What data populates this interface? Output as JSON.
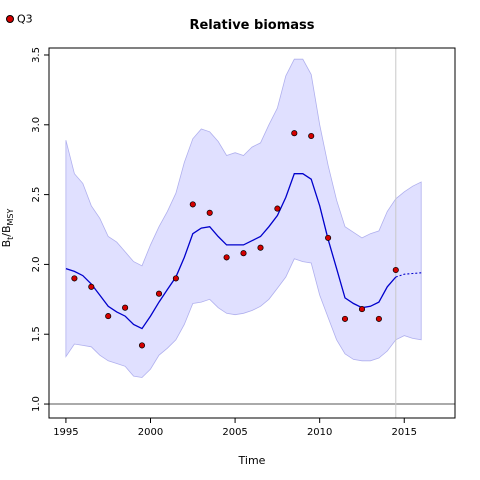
{
  "chart_data": {
    "type": "line",
    "title": "Relative biomass",
    "xlabel": "Time",
    "ylabel": "B",
    "ylabel_sub1": "t",
    "ylabel_sep": "/B",
    "ylabel_sub2": "MSY",
    "xlim": [
      1994,
      2018
    ],
    "ylim": [
      0.9,
      3.55
    ],
    "xticks": [
      1995,
      2000,
      2005,
      2010,
      2015
    ],
    "yticks": [
      1.0,
      1.5,
      2.0,
      2.5,
      3.0,
      3.5
    ],
    "ytick_labels": [
      "1.0",
      "1.5",
      "2.0",
      "2.5",
      "3.0",
      "3.5"
    ],
    "reference_line_y": 1.0,
    "vertical_line_x": 2014.5,
    "colors": {
      "line": "#0000cc",
      "band": "#e0e0ff",
      "band_edge": "#b0b0ee",
      "points": "#d40000",
      "vline": "#c8c8c8"
    },
    "series": [
      {
        "name": "Q3",
        "type": "points",
        "x": [
          1995.5,
          1996.5,
          1997.5,
          1998.5,
          1999.5,
          2000.5,
          2001.5,
          2002.5,
          2003.5,
          2004.5,
          2005.5,
          2006.5,
          2007.5,
          2008.5,
          2009.5,
          2010.5,
          2011.5,
          2012.5,
          2013.5,
          2014.5
        ],
        "values": [
          1.9,
          1.84,
          1.63,
          1.69,
          1.42,
          1.79,
          1.9,
          2.43,
          2.37,
          2.05,
          2.08,
          2.12,
          2.4,
          2.94,
          2.92,
          2.19,
          1.61,
          1.68,
          1.61,
          1.96
        ]
      },
      {
        "type": "line",
        "x": [
          1995.0,
          1995.5,
          1996.0,
          1996.5,
          1997.0,
          1997.5,
          1998.0,
          1998.5,
          1999.0,
          1999.5,
          2000.0,
          2000.5,
          2001.0,
          2001.5,
          2002.0,
          2002.5,
          2003.0,
          2003.5,
          2004.0,
          2004.5,
          2005.0,
          2005.5,
          2006.0,
          2006.5,
          2007.0,
          2007.5,
          2008.0,
          2008.5,
          2009.0,
          2009.5,
          2010.0,
          2010.5,
          2011.0,
          2011.5,
          2012.0,
          2012.5,
          2013.0,
          2013.5,
          2014.0,
          2014.5
        ],
        "values": [
          1.97,
          1.95,
          1.92,
          1.86,
          1.78,
          1.7,
          1.66,
          1.63,
          1.57,
          1.54,
          1.63,
          1.73,
          1.82,
          1.91,
          2.05,
          2.22,
          2.26,
          2.27,
          2.2,
          2.14,
          2.14,
          2.14,
          2.17,
          2.2,
          2.27,
          2.35,
          2.48,
          2.65,
          2.65,
          2.61,
          2.42,
          2.18,
          1.97,
          1.76,
          1.72,
          1.69,
          1.7,
          1.73,
          1.84,
          1.91
        ]
      },
      {
        "type": "projection",
        "x": [
          2014.5,
          2015.0,
          2015.5,
          2016.0
        ],
        "values": [
          1.91,
          1.93,
          1.935,
          1.94
        ]
      },
      {
        "type": "band",
        "x": [
          1995.0,
          1995.5,
          1996.0,
          1996.5,
          1997.0,
          1997.5,
          1998.0,
          1998.5,
          1999.0,
          1999.5,
          2000.0,
          2000.5,
          2001.0,
          2001.5,
          2002.0,
          2002.5,
          2003.0,
          2003.5,
          2004.0,
          2004.5,
          2005.0,
          2005.5,
          2006.0,
          2006.5,
          2007.0,
          2007.5,
          2008.0,
          2008.5,
          2009.0,
          2009.5,
          2010.0,
          2010.5,
          2011.0,
          2011.5,
          2012.0,
          2012.5,
          2013.0,
          2013.5,
          2014.0,
          2014.5,
          2015.0,
          2015.5,
          2016.0
        ],
        "upper": [
          2.89,
          2.65,
          2.58,
          2.42,
          2.33,
          2.2,
          2.16,
          2.09,
          2.02,
          1.99,
          2.14,
          2.27,
          2.38,
          2.51,
          2.73,
          2.9,
          2.97,
          2.95,
          2.88,
          2.78,
          2.8,
          2.78,
          2.84,
          2.87,
          3.0,
          3.12,
          3.35,
          3.47,
          3.47,
          3.36,
          3.0,
          2.71,
          2.46,
          2.27,
          2.23,
          2.19,
          2.22,
          2.24,
          2.38,
          2.47,
          2.52,
          2.56,
          2.59
        ],
        "lower": [
          1.34,
          1.43,
          1.42,
          1.41,
          1.35,
          1.31,
          1.29,
          1.27,
          1.2,
          1.19,
          1.25,
          1.35,
          1.4,
          1.46,
          1.57,
          1.72,
          1.73,
          1.75,
          1.69,
          1.65,
          1.64,
          1.65,
          1.67,
          1.7,
          1.75,
          1.83,
          1.91,
          2.04,
          2.02,
          2.01,
          1.78,
          1.62,
          1.46,
          1.36,
          1.32,
          1.31,
          1.31,
          1.33,
          1.38,
          1.46,
          1.49,
          1.47,
          1.46
        ]
      }
    ]
  }
}
